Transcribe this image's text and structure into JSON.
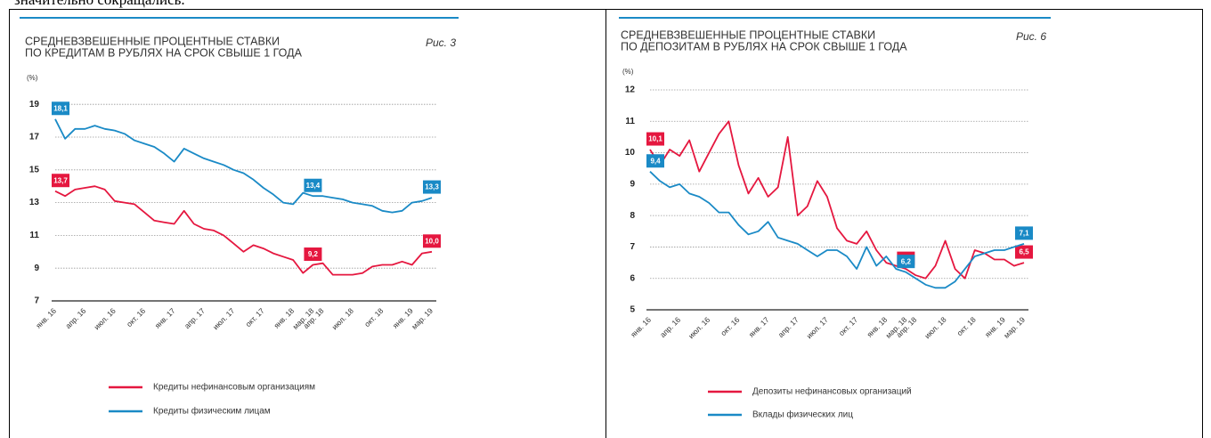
{
  "text_above": "значительно сокращались.",
  "chart_data": [
    {
      "type": "line",
      "title": [
        "СРЕДНЕВЗВЕШЕННЫЕ ПРОЦЕНТНЫЕ СТАВКИ",
        "ПО КРЕДИТАМ В РУБЛЯХ НА СРОК СВЫШЕ 1 ГОДА"
      ],
      "figure_label": "Рис. 3",
      "y_label": "(%)",
      "categories": [
        "янв. 16",
        null,
        null,
        "апр. 16",
        null,
        null,
        "июл. 16",
        null,
        null,
        "окт. 16",
        null,
        null,
        "янв. 17",
        null,
        null,
        "апр. 17",
        null,
        null,
        "июл. 17",
        null,
        null,
        "окт. 17",
        null,
        null,
        "янв. 18",
        null,
        "мар. 18",
        "апр. 18",
        null,
        null,
        "июл. 18",
        null,
        null,
        "окт. 18",
        null,
        null,
        "янв. 19",
        null,
        "мар. 19"
      ],
      "ylim": [
        7,
        19.5
      ],
      "yticks": [
        7,
        9,
        11,
        13,
        15,
        17,
        19
      ],
      "grid": true,
      "series": [
        {
          "name": "Кредиты нефинансовым организациям",
          "color": "#e5173f",
          "values": [
            13.7,
            13.4,
            13.8,
            13.9,
            14.0,
            13.8,
            13.1,
            13.0,
            12.9,
            12.4,
            11.9,
            11.8,
            11.7,
            12.5,
            11.7,
            11.4,
            11.3,
            11.0,
            10.5,
            10.0,
            10.4,
            10.2,
            9.9,
            9.7,
            9.5,
            8.7,
            9.2,
            9.3,
            8.6,
            8.6,
            8.6,
            8.7,
            9.1,
            9.2,
            9.2,
            9.4,
            9.2,
            9.9,
            10.0
          ],
          "value_labels": [
            "13,7",
            null,
            null,
            null,
            null,
            null,
            null,
            null,
            null,
            null,
            null,
            null,
            null,
            null,
            null,
            null,
            null,
            null,
            null,
            null,
            null,
            null,
            null,
            null,
            null,
            null,
            "9,2",
            null,
            null,
            null,
            null,
            null,
            null,
            null,
            null,
            null,
            null,
            null,
            "10,0"
          ]
        },
        {
          "name": "Кредиты физическим лицам",
          "color": "#1a8ac6",
          "values": [
            18.1,
            16.9,
            17.5,
            17.5,
            17.7,
            17.5,
            17.4,
            17.2,
            16.8,
            16.6,
            16.4,
            16.0,
            15.5,
            16.3,
            16.0,
            15.7,
            15.5,
            15.3,
            15.0,
            14.8,
            14.4,
            13.9,
            13.5,
            13.0,
            12.9,
            13.6,
            13.4,
            13.4,
            13.3,
            13.2,
            13.0,
            12.9,
            12.8,
            12.5,
            12.4,
            12.5,
            13.0,
            13.1,
            13.3
          ],
          "value_labels": [
            "18,1",
            null,
            null,
            null,
            null,
            null,
            null,
            null,
            null,
            null,
            null,
            null,
            null,
            null,
            null,
            null,
            null,
            null,
            null,
            null,
            null,
            null,
            null,
            null,
            null,
            null,
            "13,4",
            null,
            null,
            null,
            null,
            null,
            null,
            null,
            null,
            null,
            null,
            null,
            "13,3"
          ]
        }
      ]
    },
    {
      "type": "line",
      "title": [
        "СРЕДНЕВЗВЕШЕННЫЕ ПРОЦЕНТНЫЕ СТАВКИ",
        "ПО ДЕПОЗИТАМ В РУБЛЯХ НА СРОК СВЫШЕ 1 ГОДА"
      ],
      "figure_label": "Рис. 6",
      "y_label": "(%)",
      "categories": [
        "янв. 16",
        null,
        null,
        "апр. 16",
        null,
        null,
        "июл. 16",
        null,
        null,
        "окт. 16",
        null,
        null,
        "янв. 17",
        null,
        null,
        "апр. 17",
        null,
        null,
        "июл. 17",
        null,
        null,
        "окт. 17",
        null,
        null,
        "янв. 18",
        null,
        "мар. 18",
        "апр. 18",
        null,
        null,
        "июл. 18",
        null,
        null,
        "окт. 18",
        null,
        null,
        "янв. 19",
        null,
        "мар. 19"
      ],
      "ylim": [
        5,
        12
      ],
      "yticks": [
        5,
        6,
        7,
        8,
        9,
        10,
        11,
        12
      ],
      "grid": true,
      "series": [
        {
          "name": "Депозиты нефинансовых организаций",
          "color": "#e5173f",
          "values": [
            10.1,
            9.6,
            10.1,
            9.9,
            10.4,
            9.4,
            10.0,
            10.6,
            11.0,
            9.6,
            8.7,
            9.2,
            8.6,
            8.9,
            10.5,
            8.0,
            8.3,
            9.1,
            8.6,
            7.6,
            7.2,
            7.1,
            7.5,
            6.9,
            6.5,
            6.4,
            6.3,
            6.1,
            6.0,
            6.4,
            7.2,
            6.3,
            6.0,
            6.9,
            6.8,
            6.6,
            6.6,
            6.4,
            6.5
          ],
          "value_labels": [
            "10,1",
            null,
            null,
            null,
            null,
            null,
            null,
            null,
            null,
            null,
            null,
            null,
            null,
            null,
            null,
            null,
            null,
            null,
            null,
            null,
            null,
            null,
            null,
            null,
            null,
            null,
            "6,3",
            null,
            null,
            null,
            null,
            null,
            null,
            null,
            null,
            null,
            null,
            null,
            "6,5"
          ]
        },
        {
          "name": "Вклады физических лиц",
          "color": "#1a8ac6",
          "values": [
            9.4,
            9.1,
            8.9,
            9.0,
            8.7,
            8.6,
            8.4,
            8.1,
            8.1,
            7.7,
            7.4,
            7.5,
            7.8,
            7.3,
            7.2,
            7.1,
            6.9,
            6.7,
            6.9,
            6.9,
            6.7,
            6.3,
            7.0,
            6.4,
            6.7,
            6.3,
            6.2,
            6.0,
            5.8,
            5.7,
            5.7,
            5.9,
            6.3,
            6.7,
            6.8,
            6.9,
            6.9,
            7.0,
            7.1
          ],
          "value_labels": [
            "9,4",
            null,
            null,
            null,
            null,
            null,
            null,
            null,
            null,
            null,
            null,
            null,
            null,
            null,
            null,
            null,
            null,
            null,
            null,
            null,
            null,
            null,
            null,
            null,
            null,
            null,
            "6,2",
            null,
            null,
            null,
            null,
            null,
            null,
            null,
            null,
            null,
            null,
            null,
            "7,1"
          ]
        }
      ]
    }
  ]
}
